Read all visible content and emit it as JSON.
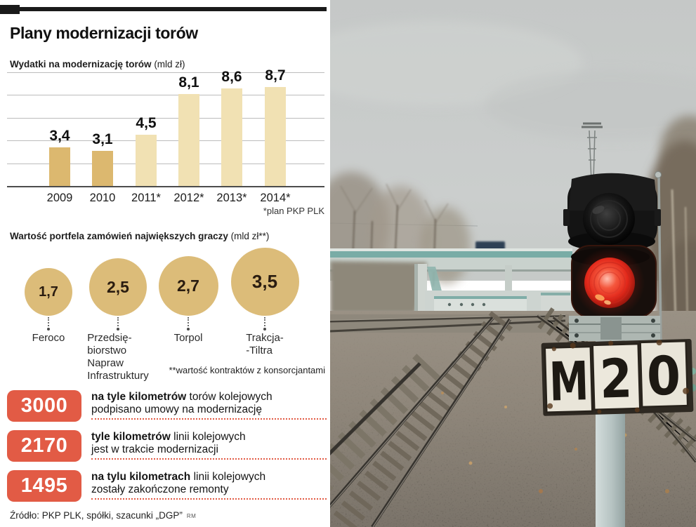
{
  "infographic": {
    "title": "Plany modernizacji torów",
    "source": "Źródło: PKP PLK, spółki, szacunki „DGP”",
    "source_credit": "RM"
  },
  "chart_data": [
    {
      "type": "bar",
      "title": "Wydatki na modernizację torów",
      "unit": "(mld zł)",
      "categories": [
        "2009",
        "2010",
        "2011*",
        "2012*",
        "2013*",
        "2014*"
      ],
      "values": [
        3.4,
        3.1,
        4.5,
        8.1,
        8.6,
        8.7
      ],
      "value_labels": [
        "3,4",
        "3,1",
        "4,5",
        "8,1",
        "8,6",
        "8,7"
      ],
      "footnote": "*plan PKP PLK",
      "ylim": [
        0,
        10
      ],
      "gridlines": 6,
      "grid_on": true,
      "actual_color": "#dcb86f",
      "plan_color": "#f1e1b3",
      "actual_count": 2
    },
    {
      "type": "bubble",
      "title": "Wartość portfela zamówień największych graczy",
      "unit": "(mld zł**)",
      "points": [
        {
          "label": "Feroco",
          "label_lines": [
            "Feroco"
          ],
          "value": 1.7,
          "value_label": "1,7"
        },
        {
          "label": "Przedsiębiorstwo Napraw Infrastruktury",
          "label_lines": [
            "Przedsię-",
            "biorstwo",
            "Napraw",
            "Infrastruktury"
          ],
          "value": 2.5,
          "value_label": "2,5"
        },
        {
          "label": "Torpol",
          "label_lines": [
            "Torpol"
          ],
          "value": 2.7,
          "value_label": "2,7"
        },
        {
          "label": "Trakcja-Tiltra",
          "label_lines": [
            "Trakcja-",
            "-Tiltra"
          ],
          "value": 3.5,
          "value_label": "3,5"
        }
      ],
      "footnote": "**wartość kontraktów z konsorcjantami",
      "fill_color": "#dcbc79"
    }
  ],
  "stats": [
    {
      "value": "3000",
      "bold": "na tyle kilometrów",
      "rest": " torów kolejowych",
      "line2": "podpisano umowy na modernizację"
    },
    {
      "value": "2170",
      "bold": "tyle kilometrów",
      "rest": " linii kolejowych",
      "line2": "jest w trakcie modernizacji"
    },
    {
      "value": "1495",
      "bold": "na tylu kilometrach",
      "rest": " linii kolejowych",
      "line2": "zostały zakończone remonty"
    }
  ],
  "photo": {
    "sign_chars": [
      "M",
      "2",
      "0"
    ],
    "signal_state_color": "#e2281a"
  },
  "colors": {
    "accent_red": "#e25b45",
    "bar_actual": "#dcb86f",
    "bar_plan": "#f1e1b3",
    "bubble_tan": "#dcbc79",
    "topbar_black": "#1a1a1a"
  }
}
